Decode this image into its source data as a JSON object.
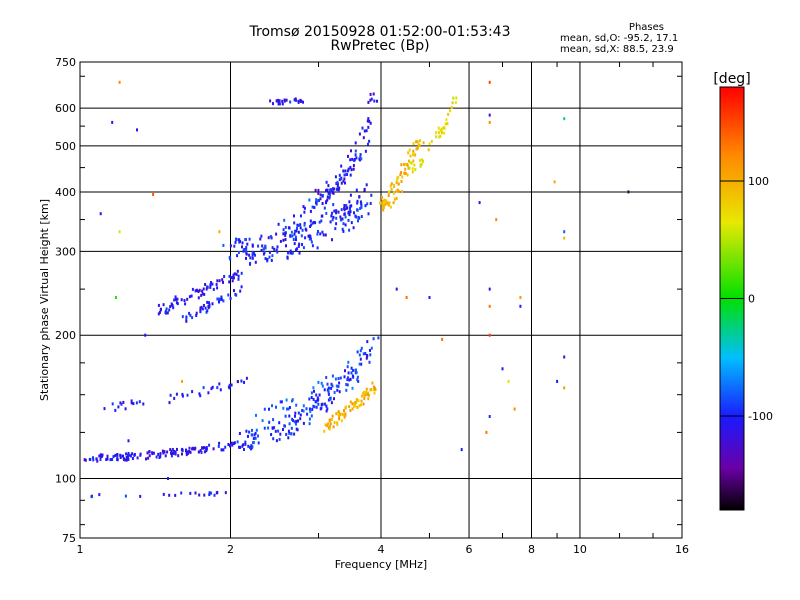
{
  "header": {
    "title": "Tromsø 20150928 01:52:00-01:53:43",
    "subtitle": "RwPretec (Bp)"
  },
  "stats": {
    "label": "Phases",
    "line_o": "mean, sd,O: -95.2, 17.1",
    "line_x": "mean, sd,X: 88.5, 23.9"
  },
  "chart_data": {
    "type": "scatter",
    "title": "Tromsø 20150928 01:52:00-01:53:43",
    "subtitle": "RwPretec (Bp)",
    "xlabel": "Frequency [MHz]",
    "ylabel": "Stationary phase Virtual Height [km]",
    "xscale": "log",
    "yscale": "log",
    "xlim": [
      1,
      16
    ],
    "ylim": [
      75,
      750
    ],
    "x_ticks": [
      {
        "value": 1,
        "label": "1"
      },
      {
        "value": 2,
        "label": "2"
      },
      {
        "value": 4,
        "label": "4"
      },
      {
        "value": 6,
        "label": "6"
      },
      {
        "value": 8,
        "label": "8"
      },
      {
        "value": 10,
        "label": "10"
      },
      {
        "value": 16,
        "label": "16"
      }
    ],
    "x_grid": [
      2,
      4,
      6,
      8,
      10,
      16
    ],
    "y_ticks": [
      {
        "value": 75,
        "label": "75"
      },
      {
        "value": 100,
        "label": "100"
      },
      {
        "value": 200,
        "label": "200"
      },
      {
        "value": 300,
        "label": "300"
      },
      {
        "value": 400,
        "label": "400"
      },
      {
        "value": 500,
        "label": "500"
      },
      {
        "value": 600,
        "label": "600"
      },
      {
        "value": 750,
        "label": "750"
      }
    ],
    "y_grid": [
      100,
      200,
      300,
      400,
      500,
      600
    ],
    "grid": true,
    "colorbar": {
      "label": "[deg]",
      "range": [
        -180,
        180
      ],
      "ticks": [
        {
          "value": 100,
          "label": "100"
        },
        {
          "value": 0,
          "label": "0"
        },
        {
          "value": -100,
          "label": "-100"
        }
      ]
    },
    "series": [
      {
        "traces": [
          {
            "f0": 1.02,
            "f1": 2.05,
            "h0": 110,
            "h1": 118,
            "curv": 1.6,
            "n": 130,
            "jit": 0.035,
            "p": -110
          },
          {
            "f0": 1.05,
            "f1": 2.15,
            "h0": 140,
            "h1": 160,
            "curv": 1.4,
            "n": 40,
            "jit": 0.04,
            "p": -105
          },
          {
            "f0": 1.45,
            "f1": 2.1,
            "h0": 226,
            "h1": 270,
            "curv": 1.0,
            "n": 70,
            "jit": 0.05,
            "p": -108
          },
          {
            "f0": 1.6,
            "f1": 2.1,
            "h0": 215,
            "h1": 250,
            "curv": 1.0,
            "n": 40,
            "jit": 0.04,
            "p": -100
          },
          {
            "f0": 2.0,
            "f1": 3.9,
            "h0": 120,
            "h1": 195,
            "curv": 2.2,
            "n": 140,
            "jit": 0.09,
            "p": -95
          },
          {
            "f0": 2.3,
            "f1": 3.6,
            "h0": 135,
            "h1": 170,
            "curv": 1.5,
            "n": 60,
            "jit": 0.12,
            "p": -85
          },
          {
            "f0": 2.0,
            "f1": 3.8,
            "h0": 300,
            "h1": 395,
            "curv": 2.2,
            "n": 200,
            "jit": 0.13,
            "p": -100
          },
          {
            "f0": 3.0,
            "f1": 3.9,
            "h0": 390,
            "h1": 640,
            "curv": 2.0,
            "n": 70,
            "jit": 0.07,
            "p": -112
          },
          {
            "f0": 2.5,
            "f1": 3.8,
            "h0": 330,
            "h1": 520,
            "curv": 1.3,
            "n": 60,
            "jit": 0.09,
            "p": -95
          }
        ]
      },
      {
        "traces": [
          {
            "f0": 3.1,
            "f1": 3.9,
            "h0": 128,
            "h1": 155,
            "curv": 1.0,
            "n": 80,
            "jit": 0.05,
            "p": 95
          },
          {
            "f0": 4.0,
            "f1": 4.8,
            "h0": 375,
            "h1": 520,
            "curv": 1.4,
            "n": 80,
            "jit": 0.07,
            "p": 92
          },
          {
            "f0": 4.6,
            "f1": 5.7,
            "h0": 450,
            "h1": 640,
            "curv": 1.5,
            "n": 40,
            "jit": 0.05,
            "p": 70
          }
        ]
      },
      {
        "traces": [
          {
            "f0": 2.4,
            "f1": 2.85,
            "h0": 615,
            "h1": 625,
            "curv": 1.0,
            "n": 25,
            "jit": 0.02,
            "p": -105
          },
          {
            "f0": 1.05,
            "f1": 1.95,
            "h0": 92,
            "h1": 93,
            "curv": 1.0,
            "n": 20,
            "jit": 0.015,
            "p": -100
          }
        ]
      }
    ],
    "scatter_points": [
      [
        1.2,
        680,
        120
      ],
      [
        1.16,
        560,
        -100
      ],
      [
        1.3,
        540,
        -105
      ],
      [
        1.1,
        360,
        -110
      ],
      [
        1.2,
        330,
        60
      ],
      [
        1.4,
        395,
        140
      ],
      [
        1.18,
        240,
        10
      ],
      [
        1.35,
        200,
        -100
      ],
      [
        1.6,
        160,
        100
      ],
      [
        1.9,
        330,
        100
      ],
      [
        6.6,
        680,
        150
      ],
      [
        6.6,
        580,
        -120
      ],
      [
        6.6,
        560,
        120
      ],
      [
        6.8,
        350,
        120
      ],
      [
        6.6,
        250,
        -110
      ],
      [
        6.6,
        230,
        130
      ],
      [
        7.6,
        240,
        110
      ],
      [
        7.6,
        230,
        -100
      ],
      [
        9.3,
        570,
        -30
      ],
      [
        9.3,
        330,
        -80
      ],
      [
        9.3,
        320,
        90
      ],
      [
        9.3,
        180,
        -110
      ],
      [
        9.3,
        155,
        110
      ],
      [
        12.5,
        400,
        -160
      ],
      [
        6.3,
        380,
        -110
      ],
      [
        6.6,
        200,
        150
      ],
      [
        7.0,
        170,
        -100
      ],
      [
        7.2,
        160,
        70
      ],
      [
        5.3,
        196,
        130
      ],
      [
        5.0,
        240,
        -100
      ],
      [
        6.5,
        125,
        130
      ],
      [
        7.4,
        140,
        120
      ],
      [
        5.8,
        115,
        -100
      ],
      [
        6.6,
        135,
        -95
      ],
      [
        9.0,
        160,
        -100
      ],
      [
        8.9,
        420,
        100
      ],
      [
        4.5,
        240,
        130
      ],
      [
        4.3,
        250,
        -110
      ],
      [
        1.5,
        100,
        -100
      ],
      [
        1.25,
        120,
        -110
      ]
    ]
  }
}
